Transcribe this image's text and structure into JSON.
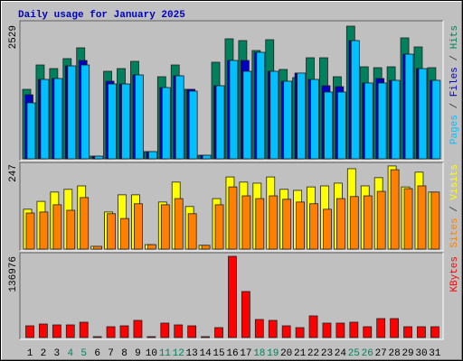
{
  "chart_data": [
    {
      "type": "bar",
      "title": "Daily usage for January 2025",
      "title_color": "#0000c0",
      "ylim": [
        0,
        2529
      ],
      "yticks": [
        2529
      ],
      "legend_separator": " / ",
      "series": [
        {
          "name": "Hits",
          "color": "#00805c",
          "values": [
            1316,
            1777,
            1709,
            1897,
            2102,
            51,
            1658,
            1709,
            1846,
            137,
            1555,
            1777,
            1316,
            68,
            1829,
            2273,
            2239,
            2051,
            2256,
            1692,
            1538,
            1914,
            1914,
            1555,
            2512,
            1743,
            1726,
            1743,
            2290,
            2119,
            1726
          ]
        },
        {
          "name": "Files",
          "color": "#0000c0",
          "values": [
            1213,
            1504,
            1521,
            1760,
            1863,
            51,
            1470,
            1418,
            1589,
            137,
            1350,
            1572,
            1316,
            68,
            1384,
            1863,
            1863,
            2017,
            1658,
            1470,
            1624,
            1504,
            1384,
            1367,
            2239,
            1436,
            1521,
            1487,
            1982,
            1709,
            1487
          ]
        },
        {
          "name": "Pages",
          "color": "#00c0ff",
          "values": [
            1060,
            1504,
            1521,
            1760,
            1777,
            51,
            1418,
            1418,
            1589,
            137,
            1350,
            1572,
            1282,
            68,
            1384,
            1863,
            1658,
            2017,
            1658,
            1470,
            1624,
            1504,
            1265,
            1265,
            2239,
            1436,
            1436,
            1487,
            1982,
            1709,
            1487
          ]
        }
      ]
    },
    {
      "type": "bar",
      "ylim": [
        0,
        247
      ],
      "yticks": [
        247
      ],
      "legend_separator": " / ",
      "series": [
        {
          "name": "Visits",
          "color": "#ffff00",
          "values": [
            116,
            139,
            166,
            174,
            184,
            8,
            108,
            158,
            158,
            13,
            137,
            195,
            124,
            11,
            147,
            210,
            195,
            192,
            210,
            174,
            171,
            181,
            184,
            192,
            234,
            184,
            208,
            242,
            181,
            224,
            166
          ]
        },
        {
          "name": "Sites",
          "color": "#ff8000",
          "values": [
            105,
            108,
            129,
            113,
            150,
            8,
            103,
            89,
            132,
            13,
            129,
            147,
            103,
            11,
            129,
            181,
            155,
            147,
            155,
            145,
            137,
            132,
            116,
            147,
            153,
            155,
            168,
            231,
            176,
            184,
            166
          ]
        }
      ]
    },
    {
      "type": "bar",
      "ylim": [
        0,
        136976
      ],
      "yticks": [
        136976
      ],
      "categories": [
        "1",
        "2",
        "3",
        "4",
        "5",
        "6",
        "7",
        "8",
        "9",
        "10",
        "11",
        "12",
        "13",
        "14",
        "15",
        "16",
        "17",
        "18",
        "19",
        "20",
        "21",
        "22",
        "23",
        "24",
        "25",
        "26",
        "27",
        "28",
        "29",
        "30",
        "31"
      ],
      "category_colors": [
        "#000000",
        "#000000",
        "#000000",
        "#00805c",
        "#00805c",
        "#000000",
        "#000000",
        "#000000",
        "#000000",
        "#000000",
        "#00805c",
        "#00805c",
        "#000000",
        "#000000",
        "#000000",
        "#000000",
        "#000000",
        "#00805c",
        "#00805c",
        "#000000",
        "#000000",
        "#000000",
        "#000000",
        "#000000",
        "#00805c",
        "#00805c",
        "#000000",
        "#000000",
        "#000000",
        "#000000",
        "#000000"
      ],
      "series": [
        {
          "name": "KBytes",
          "color": "#ff0000",
          "values": [
            19786,
            22830,
            21308,
            21308,
            25874,
            1522,
            18264,
            19786,
            28918,
            1522,
            24352,
            21308,
            19786,
            1522,
            16742,
            136976,
            77622,
            30440,
            28918,
            19786,
            16742,
            36528,
            24352,
            24352,
            25874,
            18264,
            31962,
            31962,
            18264,
            18264,
            18264
          ]
        }
      ]
    }
  ]
}
